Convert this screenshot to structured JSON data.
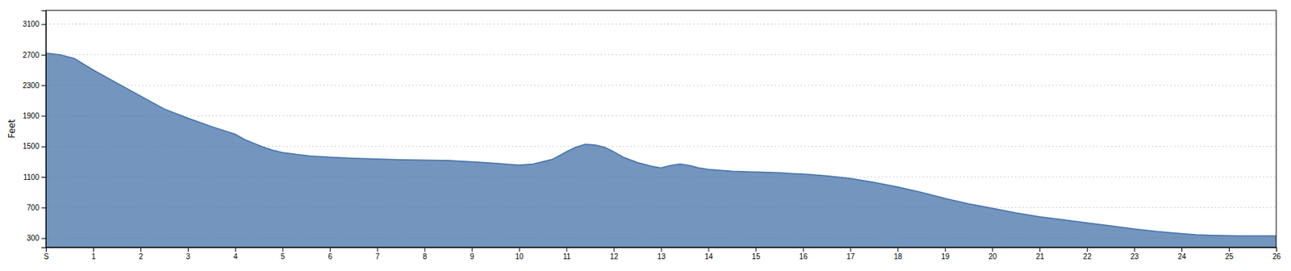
{
  "chart_data": {
    "type": "area",
    "y_label": "Feet",
    "color": "#4472a8",
    "grid": true,
    "xlim": [
      0,
      26
    ],
    "ylim": [
      180,
      3280
    ],
    "xticks": [
      {
        "value": 0,
        "label": "S"
      },
      1,
      2,
      3,
      4,
      5,
      6,
      7,
      8,
      9,
      10,
      11,
      12,
      13,
      14,
      15,
      16,
      17,
      18,
      19,
      20,
      21,
      22,
      23,
      24,
      25,
      26
    ],
    "yticks": [
      300,
      700,
      1100,
      1500,
      1900,
      2300,
      2700,
      3100
    ],
    "x": [
      0,
      0.3,
      0.6,
      1.0,
      1.5,
      2.0,
      2.5,
      3.0,
      3.5,
      4.0,
      4.2,
      4.4,
      4.6,
      4.8,
      5.0,
      5.3,
      5.6,
      6.0,
      6.5,
      7.0,
      7.5,
      8.0,
      8.5,
      9.0,
      9.5,
      9.8,
      10.0,
      10.3,
      10.7,
      11.0,
      11.2,
      11.4,
      11.6,
      11.8,
      12.0,
      12.2,
      12.5,
      12.8,
      13.0,
      13.2,
      13.4,
      13.6,
      13.8,
      14.0,
      14.3,
      14.5,
      15.0,
      15.5,
      15.8,
      16.0,
      16.2,
      16.5,
      17.0,
      17.5,
      18.0,
      18.5,
      19.0,
      19.5,
      20.0,
      20.5,
      21.0,
      21.5,
      22.0,
      22.5,
      23.0,
      23.5,
      24.0,
      24.3,
      24.6,
      24.8,
      25.0,
      25.2,
      25.5,
      25.7,
      25.9,
      26.0
    ],
    "values": [
      2720,
      2700,
      2650,
      2500,
      2330,
      2160,
      1990,
      1870,
      1760,
      1660,
      1590,
      1540,
      1490,
      1450,
      1420,
      1395,
      1375,
      1360,
      1345,
      1335,
      1325,
      1320,
      1315,
      1300,
      1280,
      1265,
      1255,
      1270,
      1330,
      1430,
      1490,
      1530,
      1520,
      1490,
      1430,
      1360,
      1290,
      1240,
      1220,
      1250,
      1270,
      1250,
      1220,
      1200,
      1185,
      1175,
      1165,
      1155,
      1145,
      1140,
      1130,
      1115,
      1080,
      1030,
      970,
      900,
      820,
      750,
      690,
      630,
      580,
      540,
      500,
      460,
      420,
      385,
      360,
      345,
      338,
      335,
      332,
      330,
      330,
      330,
      330,
      330
    ]
  }
}
